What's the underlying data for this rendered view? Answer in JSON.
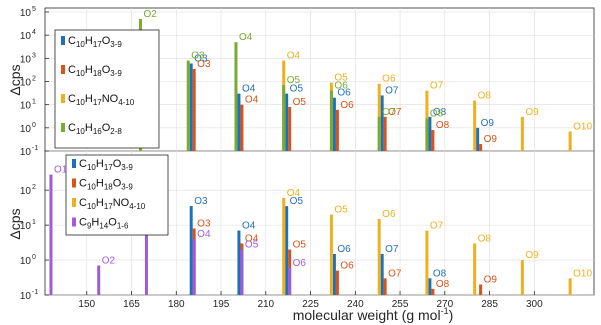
{
  "chart_data": [
    {
      "type": "bar",
      "panel": "top",
      "ylabel": "Δcps",
      "yscale": "log",
      "ylim": [
        0.1,
        100000
      ],
      "y_ticks": [
        {
          "label": "10",
          "exp": "-1",
          "value": 0.1
        },
        {
          "label": "10",
          "exp": "0",
          "value": 1
        },
        {
          "label": "10",
          "exp": "1",
          "value": 10
        },
        {
          "label": "10",
          "exp": "2",
          "value": 100
        },
        {
          "label": "10",
          "exp": "3",
          "value": 1000
        },
        {
          "label": "10",
          "exp": "4",
          "value": 10000
        },
        {
          "label": "10",
          "exp": "5",
          "value": 100000
        }
      ],
      "legend": {
        "placement": "top-left",
        "entries": [
          {
            "base": "C",
            "sub1": "10",
            "mid": "H",
            "sub2": "17",
            "mid2": "O",
            "sub3": "3-9",
            "color": "#1f6fbf"
          },
          {
            "base": "C",
            "sub1": "10",
            "mid": "H",
            "sub2": "18",
            "mid2": "O",
            "sub3": "3-9",
            "color": "#d95319"
          },
          {
            "base": "C",
            "sub1": "10",
            "mid": "H",
            "sub2": "17",
            "mid2": "NO",
            "sub3": "4-10",
            "color": "#edb120"
          },
          {
            "base": "C",
            "sub1": "10",
            "mid": "H",
            "sub2": "16",
            "mid2": "O",
            "sub3": "2-8",
            "color": "#77ac30"
          }
        ]
      },
      "series": [
        {
          "color": "#1f6fbf",
          "x": [
            185,
            201,
            217,
            233,
            249,
            265,
            281
          ],
          "values": [
            600,
            30,
            30,
            20,
            25,
            3,
            1
          ],
          "labels": [
            "O3",
            "O4",
            "O5",
            "O6",
            "O7",
            "O8",
            "O9"
          ]
        },
        {
          "color": "#d95319",
          "x": [
            186,
            202,
            218,
            234,
            250,
            266,
            282
          ],
          "values": [
            350,
            10,
            8,
            6,
            3,
            0.8,
            0.2
          ],
          "labels": [
            "O3",
            "O4",
            "O5",
            "O6",
            "O7",
            "O8",
            "O9"
          ]
        },
        {
          "color": "#edb120",
          "x": [
            216,
            232,
            248,
            264,
            280,
            296,
            312
          ],
          "values": [
            800,
            90,
            80,
            40,
            15,
            3,
            0.7
          ],
          "labels": [
            "O4",
            "O5",
            "O6",
            "O7",
            "O8",
            "O9",
            "O10"
          ]
        },
        {
          "color": "#77ac30",
          "x": [
            168,
            184,
            200,
            216,
            232,
            248,
            264
          ],
          "values": [
            50000,
            800,
            5000,
            70,
            40,
            3,
            2.5
          ],
          "labels": [
            "O2",
            "O3",
            "O4",
            "O5",
            "O6",
            "O7",
            "O8"
          ]
        }
      ]
    },
    {
      "type": "bar",
      "panel": "bottom",
      "xlabel": "molecular weight (g mol",
      "xlabel_exp": "-1",
      "xlabel_tail": ")",
      "ylabel": "Δcps",
      "yscale": "log",
      "ylim": [
        0.1,
        600
      ],
      "xlim": [
        136,
        320
      ],
      "x_ticks": [
        150,
        165,
        180,
        195,
        210,
        225,
        240,
        255,
        270,
        285,
        300
      ],
      "y_ticks": [
        {
          "label": "10",
          "exp": "-1",
          "value": 0.1
        },
        {
          "label": "10",
          "exp": "0",
          "value": 1
        },
        {
          "label": "10",
          "exp": "1",
          "value": 10
        },
        {
          "label": "10",
          "exp": "2",
          "value": 100
        }
      ],
      "legend": {
        "placement": "top-left",
        "entries": [
          {
            "base": "C",
            "sub1": "10",
            "mid": "H",
            "sub2": "17",
            "mid2": "O",
            "sub3": "3-9",
            "color": "#1f6fbf"
          },
          {
            "base": "C",
            "sub1": "10",
            "mid": "H",
            "sub2": "18",
            "mid2": "O",
            "sub3": "3-9",
            "color": "#d95319"
          },
          {
            "base": "C",
            "sub1": "10",
            "mid": "H",
            "sub2": "17",
            "mid2": "NO",
            "sub3": "4-10",
            "color": "#edb120"
          },
          {
            "base": "C",
            "sub1": "9",
            "mid": "H",
            "sub2": "14",
            "mid2": "O",
            "sub3": "1-6",
            "color": "#a05bdc"
          }
        ]
      },
      "series": [
        {
          "color": "#1f6fbf",
          "x": [
            185,
            201,
            217,
            233,
            249,
            265
          ],
          "values": [
            35,
            7,
            35,
            1.5,
            1.5,
            0.3
          ],
          "labels": [
            "O3",
            "O4",
            "O5",
            "O6",
            "O7",
            "O8"
          ]
        },
        {
          "color": "#d95319",
          "x": [
            186,
            202,
            218,
            234,
            250,
            266,
            282
          ],
          "values": [
            8,
            3,
            2,
            0.5,
            0.3,
            0.15,
            0.2
          ],
          "labels": [
            "O3",
            "O4",
            "O5",
            "O6",
            "O7",
            "O8",
            "O9"
          ]
        },
        {
          "color": "#edb120",
          "x": [
            216,
            232,
            248,
            264,
            280,
            296,
            312
          ],
          "values": [
            60,
            20,
            15,
            7,
            3,
            1,
            0.3
          ],
          "labels": [
            "O4",
            "O5",
            "O6",
            "O7",
            "O8",
            "O9",
            "O10"
          ]
        },
        {
          "color": "#a05bdc",
          "x": [
            138,
            154,
            170,
            186,
            202,
            218
          ],
          "values": [
            280,
            0.7,
            40,
            4,
            2,
            0.6
          ],
          "labels": [
            "O1",
            "O2",
            "O3",
            "O4",
            "O5",
            "O6"
          ]
        }
      ]
    }
  ]
}
